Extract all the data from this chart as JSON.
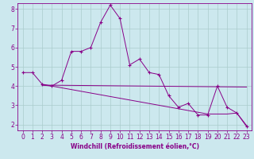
{
  "xlabel": "Windchill (Refroidissement éolien,°C)",
  "bg_color": "#cce8ee",
  "line_color": "#880088",
  "grid_color": "#aacccc",
  "line1_x": [
    0,
    1,
    2,
    3,
    4,
    5,
    6,
    7,
    8,
    9,
    10,
    11,
    12,
    13,
    14,
    15,
    16,
    17,
    18,
    19,
    20,
    21,
    22,
    23
  ],
  "line1_y": [
    4.7,
    4.7,
    4.1,
    4.0,
    4.3,
    5.8,
    5.8,
    6.0,
    7.3,
    8.2,
    7.5,
    5.1,
    5.4,
    4.7,
    4.6,
    3.5,
    2.9,
    3.1,
    2.5,
    2.5,
    4.0,
    2.9,
    2.6,
    1.9
  ],
  "line2_x": [
    2,
    3,
    19,
    20,
    21,
    22,
    23
  ],
  "line2_y": [
    4.05,
    4.0,
    2.55,
    2.55,
    2.55,
    2.6,
    1.95
  ],
  "line3_x": [
    2,
    23
  ],
  "line3_y": [
    4.05,
    3.95
  ],
  "ylim": [
    1.7,
    8.3
  ],
  "xlim": [
    -0.5,
    23.5
  ],
  "yticks": [
    2,
    3,
    4,
    5,
    6,
    7,
    8
  ],
  "xticks": [
    0,
    1,
    2,
    3,
    4,
    5,
    6,
    7,
    8,
    9,
    10,
    11,
    12,
    13,
    14,
    15,
    16,
    17,
    18,
    19,
    20,
    21,
    22,
    23
  ],
  "tick_fontsize": 5.5,
  "xlabel_fontsize": 5.5
}
